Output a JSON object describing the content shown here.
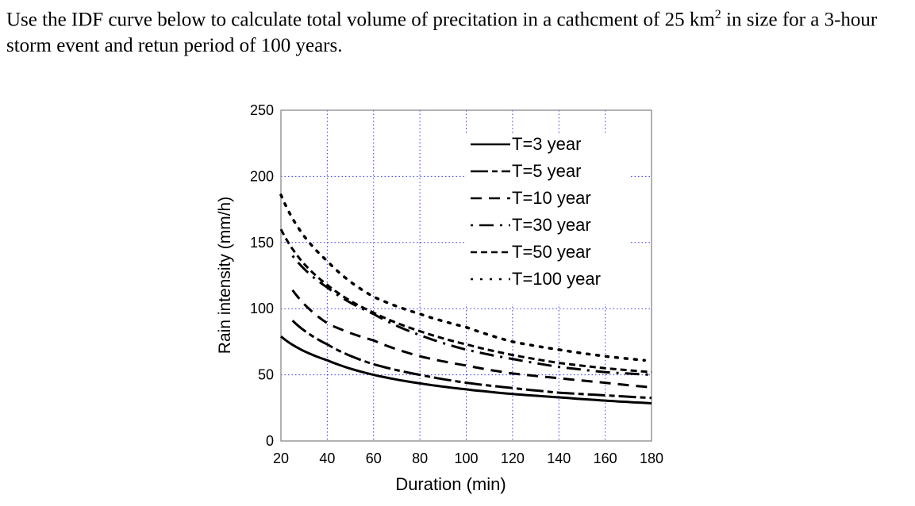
{
  "question": {
    "part1": "Use the IDF curve below to calculate total volume of precitation in a cathcment of 25 km",
    "sup": "2",
    "part2": " in size for a 3-hour storm event and retun period of 100 years."
  },
  "chart_data": {
    "type": "line",
    "title": "",
    "xlabel": "Duration (min)",
    "ylabel": "Rain intensity (mm/h)",
    "xlim": [
      20,
      180
    ],
    "ylim": [
      0,
      250
    ],
    "xticks": [
      "20",
      "40",
      "60",
      "80",
      "100",
      "120",
      "140",
      "160",
      "180"
    ],
    "yticks": [
      "0",
      "50",
      "100",
      "150",
      "200",
      "250"
    ],
    "grid": true,
    "grid_color": "#3333ff",
    "legend_position": "top-right",
    "series": [
      {
        "name": "T=3 year",
        "style": "solid",
        "x": [
          20,
          40,
          60,
          80,
          100,
          120,
          140,
          160,
          180
        ],
        "y": [
          79,
          61,
          50,
          43.5,
          39,
          35.5,
          33,
          30.5,
          28.5
        ]
      },
      {
        "name": "T=5 year",
        "style": "dash-dot",
        "x": [
          25,
          40,
          60,
          80,
          100,
          120,
          140,
          160,
          180
        ],
        "y": [
          91,
          73,
          58,
          50,
          44,
          40,
          36.5,
          34.5,
          32.5
        ]
      },
      {
        "name": "T=10 year",
        "style": "dashed",
        "x": [
          25,
          40,
          60,
          80,
          100,
          120,
          140,
          160,
          180
        ],
        "y": [
          114,
          89,
          76,
          64,
          57,
          51,
          47.5,
          44,
          40.5
        ]
      },
      {
        "name": "T=30 year",
        "style": "dot-longdash",
        "x": [
          25,
          40,
          60,
          80,
          100,
          120,
          140,
          160,
          180
        ],
        "y": [
          140,
          116,
          96,
          80,
          69,
          62,
          56,
          52,
          50
        ]
      },
      {
        "name": "T=50 year",
        "style": "short-dash",
        "x": [
          20,
          40,
          60,
          80,
          100,
          120,
          140,
          160,
          180
        ],
        "y": [
          160,
          118,
          97,
          83,
          73,
          65,
          59,
          55,
          52
        ]
      },
      {
        "name": "T=100 year",
        "style": "dotted",
        "x": [
          20,
          40,
          60,
          80,
          100,
          120,
          140,
          160,
          177
        ],
        "y": [
          186,
          136,
          109,
          96,
          86,
          75,
          69,
          64,
          61
        ]
      }
    ]
  }
}
